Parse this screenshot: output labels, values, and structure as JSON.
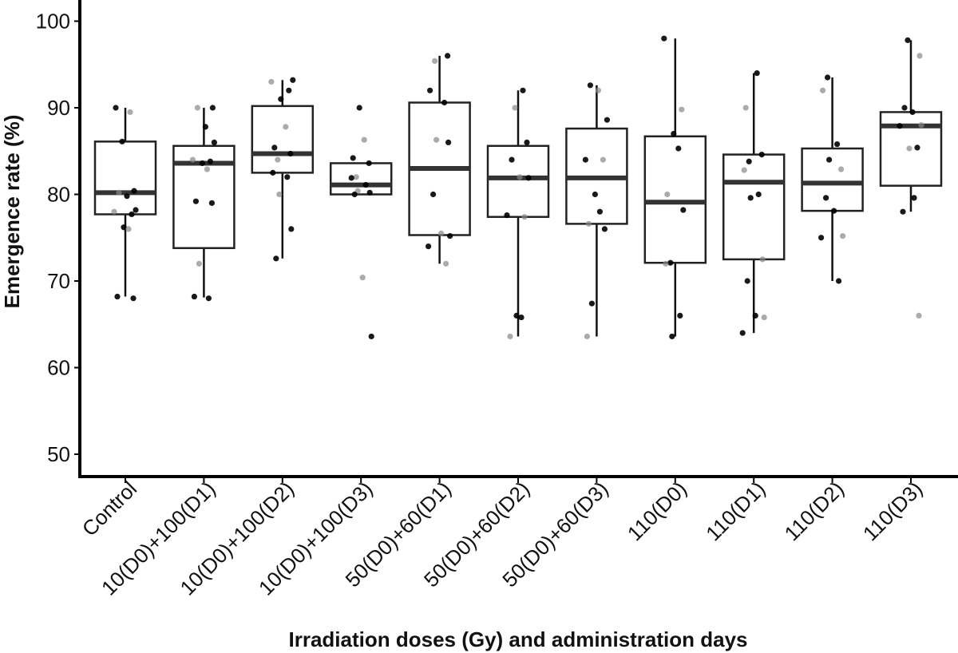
{
  "chart_data": {
    "type": "boxplot",
    "title": "",
    "xlabel": "Irradiation doses (Gy) and administration days",
    "ylabel": "Emergence rate (%)",
    "ylim": [
      47.5,
      102
    ],
    "yticks": [
      50,
      60,
      70,
      80,
      90,
      100
    ],
    "categories": [
      "Control",
      "10(D0)+100(D1)",
      "10(D0)+100(D2)",
      "10(D0)+100(D3)",
      "50(D0)+60(D1)",
      "50(D0)+60(D2)",
      "50(D0)+60(D3)",
      "110(D0)",
      "110(D1)",
      "110(D2)",
      "110(D3)"
    ],
    "boxes": [
      {
        "q1": 77.7,
        "median": 80.2,
        "q3": 86.1,
        "whisker_low": 68.2,
        "whisker_high": 90.0
      },
      {
        "q1": 73.8,
        "median": 83.6,
        "q3": 85.6,
        "whisker_low": 68.1,
        "whisker_high": 90.0
      },
      {
        "q1": 82.5,
        "median": 84.7,
        "q3": 90.2,
        "whisker_low": 72.6,
        "whisker_high": 93.2
      },
      {
        "q1": 80.0,
        "median": 81.1,
        "q3": 83.6,
        "whisker_low": 80.0,
        "whisker_high": 83.6
      },
      {
        "q1": 75.3,
        "median": 83.0,
        "q3": 90.6,
        "whisker_low": 72.0,
        "whisker_high": 96.0
      },
      {
        "q1": 77.4,
        "median": 81.9,
        "q3": 85.6,
        "whisker_low": 63.6,
        "whisker_high": 92.0
      },
      {
        "q1": 76.6,
        "median": 81.9,
        "q3": 87.6,
        "whisker_low": 63.6,
        "whisker_high": 92.6
      },
      {
        "q1": 72.1,
        "median": 79.1,
        "q3": 86.7,
        "whisker_low": 63.6,
        "whisker_high": 98.0
      },
      {
        "q1": 72.5,
        "median": 81.4,
        "q3": 84.6,
        "whisker_low": 64.0,
        "whisker_high": 94.0
      },
      {
        "q1": 78.1,
        "median": 81.3,
        "q3": 85.3,
        "whisker_low": 70.0,
        "whisker_high": 93.5
      },
      {
        "q1": 81.0,
        "median": 87.9,
        "q3": 89.5,
        "whisker_low": 78.0,
        "whisker_high": 97.8
      }
    ],
    "points": [
      [
        90.0,
        89.5,
        86.1,
        80.4,
        80.2,
        79.8,
        78.2,
        78.0,
        77.7,
        76.2,
        76.0,
        68.2,
        68.0
      ],
      [
        90.0,
        90.0,
        87.8,
        86.0,
        84.0,
        83.8,
        83.6,
        82.9,
        79.2,
        79.0,
        72.0,
        68.2,
        68.0
      ],
      [
        93.2,
        93.0,
        92.0,
        91.0,
        87.8,
        85.4,
        84.7,
        84.0,
        82.5,
        82.0,
        80.0,
        76.0,
        72.6
      ],
      [
        90.0,
        86.3,
        84.2,
        83.6,
        82.0,
        81.9,
        81.1,
        80.4,
        80.2,
        80.0,
        70.4,
        63.6
      ],
      [
        96.0,
        95.4,
        92.0,
        90.6,
        86.3,
        86.0,
        80.0,
        75.5,
        75.2,
        74.0,
        72.0
      ],
      [
        92.0,
        90.0,
        86.0,
        84.0,
        82.0,
        81.9,
        77.6,
        77.4,
        66.0,
        65.8,
        63.6
      ],
      [
        92.6,
        92.0,
        88.6,
        84.0,
        84.0,
        80.0,
        78.0,
        76.6,
        76.0,
        67.4,
        63.6
      ],
      [
        98.0,
        89.8,
        87.0,
        85.3,
        80.0,
        78.2,
        72.1,
        72.0,
        66.0,
        63.6
      ],
      [
        94.0,
        90.0,
        84.6,
        83.8,
        82.8,
        80.0,
        79.6,
        72.5,
        70.0,
        66.0,
        65.8,
        64.0
      ],
      [
        93.5,
        92.0,
        85.8,
        84.0,
        82.9,
        79.6,
        78.1,
        75.2,
        75.0,
        70.0
      ],
      [
        97.8,
        96.0,
        90.0,
        89.5,
        88.0,
        87.9,
        85.4,
        85.3,
        79.6,
        78.0,
        66.0
      ]
    ]
  }
}
